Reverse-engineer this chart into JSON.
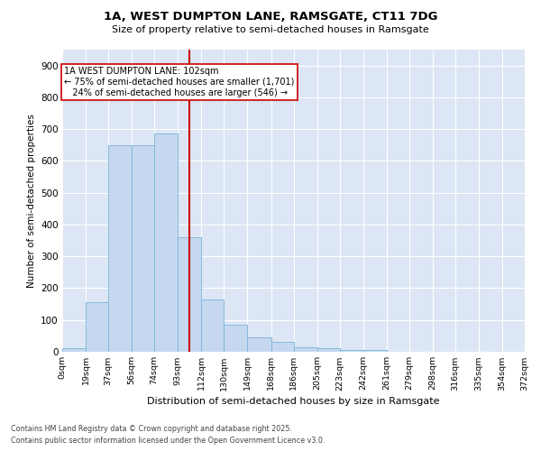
{
  "title_line1": "1A, WEST DUMPTON LANE, RAMSGATE, CT11 7DG",
  "title_line2": "Size of property relative to semi-detached houses in Ramsgate",
  "xlabel": "Distribution of semi-detached houses by size in Ramsgate",
  "ylabel": "Number of semi-detached properties",
  "bins": [
    "0sqm",
    "19sqm",
    "37sqm",
    "56sqm",
    "74sqm",
    "93sqm",
    "112sqm",
    "130sqm",
    "149sqm",
    "168sqm",
    "186sqm",
    "205sqm",
    "223sqm",
    "242sqm",
    "261sqm",
    "279sqm",
    "298sqm",
    "316sqm",
    "335sqm",
    "354sqm",
    "372sqm"
  ],
  "bin_edges": [
    0,
    19,
    37,
    56,
    74,
    93,
    112,
    130,
    149,
    168,
    186,
    205,
    223,
    242,
    261,
    279,
    298,
    316,
    335,
    354,
    372
  ],
  "heights": [
    10,
    155,
    650,
    650,
    685,
    360,
    165,
    85,
    45,
    32,
    15,
    10,
    5,
    5,
    0,
    0,
    0,
    0,
    0,
    0
  ],
  "bar_color": "#c5d8f0",
  "bar_edge_color": "#7ab4d8",
  "vline_x": 102,
  "vline_color": "#cc0000",
  "annotation_text": "1A WEST DUMPTON LANE: 102sqm\n← 75% of semi-detached houses are smaller (1,701)\n   24% of semi-detached houses are larger (546) →",
  "annotation_box_facecolor": "#ffffff",
  "annotation_box_edgecolor": "#cc0000",
  "plot_bg": "#dce6f5",
  "fig_bg": "#ffffff",
  "footer_line1": "Contains HM Land Registry data © Crown copyright and database right 2025.",
  "footer_line2": "Contains public sector information licensed under the Open Government Licence v3.0.",
  "ylim_max": 950,
  "yticks": [
    0,
    100,
    200,
    300,
    400,
    500,
    600,
    700,
    800,
    900
  ]
}
